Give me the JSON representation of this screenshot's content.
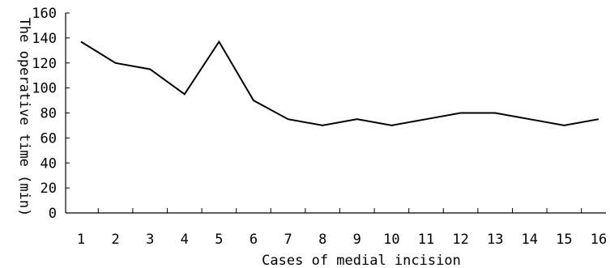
{
  "chart_data": {
    "type": "line",
    "title": "",
    "xlabel": "Cases of medial incision",
    "ylabel": "The operative time (min)",
    "categories": [
      "1",
      "2",
      "3",
      "4",
      "5",
      "6",
      "7",
      "8",
      "9",
      "10",
      "11",
      "12",
      "13",
      "14",
      "15",
      "16"
    ],
    "x": [
      1,
      2,
      3,
      4,
      5,
      6,
      7,
      8,
      9,
      10,
      11,
      12,
      13,
      14,
      15,
      16
    ],
    "series": [
      {
        "values": [
          137,
          120,
          115,
          95,
          137,
          90,
          75,
          70,
          75,
          70,
          75,
          80,
          80,
          75,
          70,
          75
        ]
      }
    ],
    "ylim": [
      0,
      160
    ],
    "yticks": [
      0,
      20,
      40,
      60,
      80,
      100,
      120,
      140,
      160
    ],
    "grid": false,
    "legend": "none",
    "colors": {
      "line": "#000000",
      "axis": "#000000",
      "background": "#ffffff"
    }
  }
}
